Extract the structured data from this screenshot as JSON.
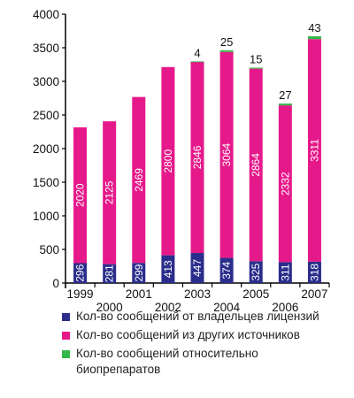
{
  "chart_data": {
    "type": "bar",
    "stacked": true,
    "categories": [
      "1999",
      "2000",
      "2001",
      "2002",
      "2003",
      "2004",
      "2005",
      "2006",
      "2007"
    ],
    "series": [
      {
        "name": "Кол-во сообщений от владельцев лицензий",
        "color": "#2b2d8c",
        "values": [
          296,
          281,
          299,
          413,
          447,
          374,
          325,
          311,
          318
        ]
      },
      {
        "name": "Кол-во сообщений из других источников",
        "color": "#e6198a",
        "values": [
          2020,
          2125,
          2469,
          2800,
          2846,
          3064,
          2864,
          2332,
          3311
        ]
      },
      {
        "name": "Кол-во сообщений относительно биопрепаратов",
        "color": "#35b84a",
        "values": [
          0,
          0,
          0,
          0,
          4,
          25,
          15,
          27,
          43
        ]
      }
    ],
    "ylim": [
      0,
      4000
    ],
    "yticks": [
      "0",
      "500",
      "1000",
      "1500",
      "2000",
      "2500",
      "3000",
      "3500",
      "4000"
    ],
    "ytick_values": [
      0,
      500,
      1000,
      1500,
      2000,
      2500,
      3000,
      3500,
      4000
    ],
    "top_labels": [
      "",
      "",
      "",
      "",
      "4",
      "25",
      "15",
      "27",
      "43"
    ],
    "xlabel": "",
    "ylabel": "",
    "title": "",
    "grid": false,
    "legend_position": "bottom"
  }
}
